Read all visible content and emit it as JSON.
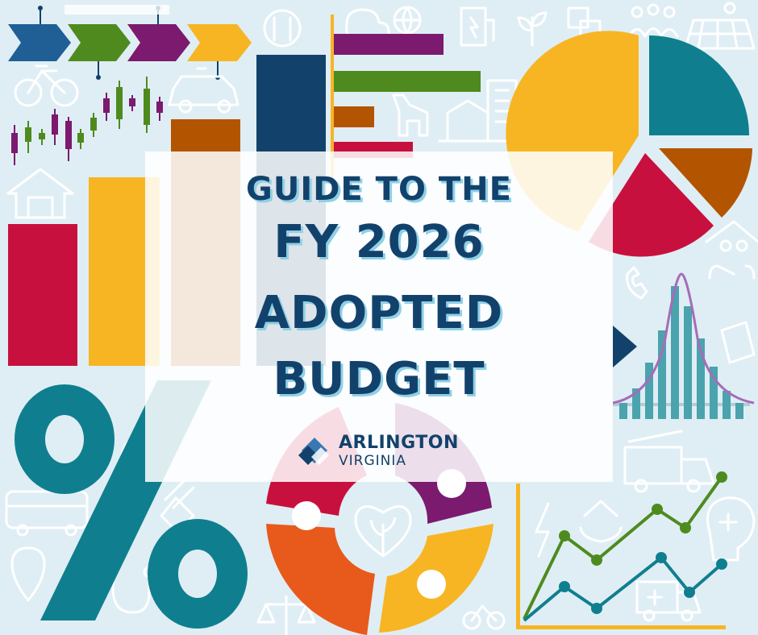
{
  "title": {
    "line1": "GUIDE TO THE",
    "line2": "FY 2026",
    "line3": "ADOPTED",
    "line4": "BUDGET"
  },
  "logo": {
    "name": "ARLINGTON",
    "subtitle": "VIRGINIA"
  },
  "colors": {
    "background": "#dfeef4",
    "navy": "#12426b",
    "teal": "#0f7f8f",
    "green": "#4f8a1f",
    "purple": "#7b1a6e",
    "gold": "#f7b524",
    "red": "#c8103e",
    "rust": "#b35400",
    "orange": "#e85a1b"
  },
  "icons": [
    "process-arrows-icon",
    "candlestick-chart-icon",
    "bicycle-icon",
    "police-car-icon",
    "house-icon",
    "dining-icon",
    "weather-icon",
    "globe-icon",
    "ev-charger-icon",
    "plant-icon",
    "translate-icon",
    "family-icon",
    "solar-panel-icon",
    "police-dog-icon",
    "buildings-icon",
    "phone-icon",
    "caregiving-icon",
    "book-icon",
    "bus-icon",
    "parking-icon",
    "leaf-icon",
    "electric-plug-icon",
    "stethoscope-icon",
    "fire-truck-icon",
    "medical-cross-icon",
    "ambulance-icon",
    "heart-plant-icon",
    "justice-scale-icon",
    "lightning-icon"
  ]
}
